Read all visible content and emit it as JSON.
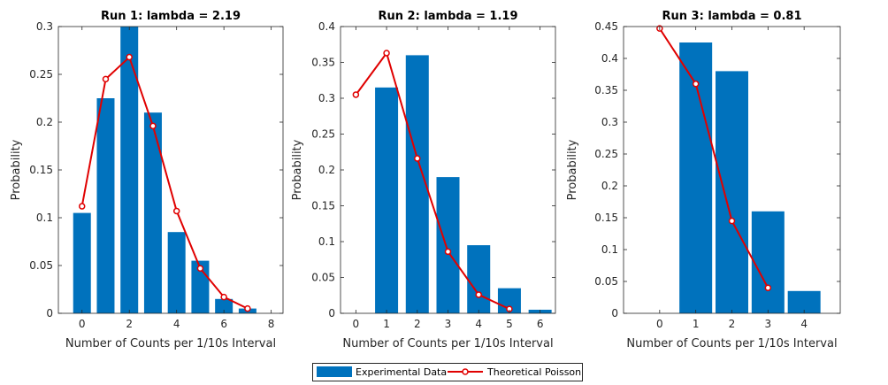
{
  "legend": {
    "experimental": "Experimental Data",
    "theoretical": "Theoretical Poisson"
  },
  "colors": {
    "bar": "#0072BD",
    "line": "#E00000",
    "axis": "#262626"
  },
  "chart_data": [
    {
      "type": "bar",
      "title": "Run 1: lambda = 2.19",
      "xlabel": "Number of Counts per 1/10s Interval",
      "ylabel": "Probability",
      "xlim": [
        -1,
        8.5
      ],
      "ylim": [
        0,
        0.3
      ],
      "xticks": [
        0,
        2,
        4,
        6,
        8
      ],
      "yticks": [
        0,
        0.05,
        0.1,
        0.15,
        0.2,
        0.25,
        0.3
      ],
      "series": [
        {
          "name": "Experimental Data",
          "kind": "bar",
          "x": [
            0,
            1,
            2,
            3,
            4,
            5,
            6,
            7,
            8
          ],
          "values": [
            0.105,
            0.225,
            0.3,
            0.21,
            0.085,
            0.055,
            0.015,
            0.005,
            0.0
          ]
        },
        {
          "name": "Theoretical Poisson",
          "kind": "line",
          "x": [
            0,
            1,
            2,
            3,
            4,
            5,
            6,
            7
          ],
          "values": [
            0.112,
            0.245,
            0.268,
            0.196,
            0.107,
            0.047,
            0.017,
            0.005
          ]
        }
      ]
    },
    {
      "type": "bar",
      "title": "Run 2: lambda = 1.19",
      "xlabel": "Number of Counts per 1/10s Interval",
      "ylabel": "Probability",
      "xlim": [
        -0.5,
        6.5
      ],
      "ylim": [
        0,
        0.4
      ],
      "xticks": [
        0,
        1,
        2,
        3,
        4,
        5,
        6
      ],
      "yticks": [
        0,
        0.05,
        0.1,
        0.15,
        0.2,
        0.25,
        0.3,
        0.35,
        0.4
      ],
      "series": [
        {
          "name": "Experimental Data",
          "kind": "bar",
          "x": [
            0,
            1,
            2,
            3,
            4,
            5,
            6
          ],
          "values": [
            0.0,
            0.315,
            0.36,
            0.19,
            0.095,
            0.035,
            0.005
          ]
        },
        {
          "name": "Theoretical Poisson",
          "kind": "line",
          "x": [
            0,
            1,
            2,
            3,
            4,
            5
          ],
          "values": [
            0.305,
            0.363,
            0.216,
            0.086,
            0.026,
            0.006
          ]
        }
      ]
    },
    {
      "type": "bar",
      "title": "Run 3: lambda = 0.81",
      "xlabel": "Number of Counts per 1/10s Interval",
      "ylabel": "Probability",
      "xlim": [
        -1,
        5
      ],
      "ylim": [
        0,
        0.45
      ],
      "xticks": [
        0,
        1,
        2,
        3,
        4
      ],
      "yticks": [
        0,
        0.05,
        0.1,
        0.15,
        0.2,
        0.25,
        0.3,
        0.35,
        0.4,
        0.45
      ],
      "series": [
        {
          "name": "Experimental Data",
          "kind": "bar",
          "x": [
            0,
            1,
            2,
            3,
            4
          ],
          "values": [
            0.0,
            0.425,
            0.38,
            0.16,
            0.035
          ]
        },
        {
          "name": "Theoretical Poisson",
          "kind": "line",
          "x": [
            0,
            1,
            2,
            3
          ],
          "values": [
            0.447,
            0.36,
            0.145,
            0.04
          ]
        }
      ]
    }
  ]
}
